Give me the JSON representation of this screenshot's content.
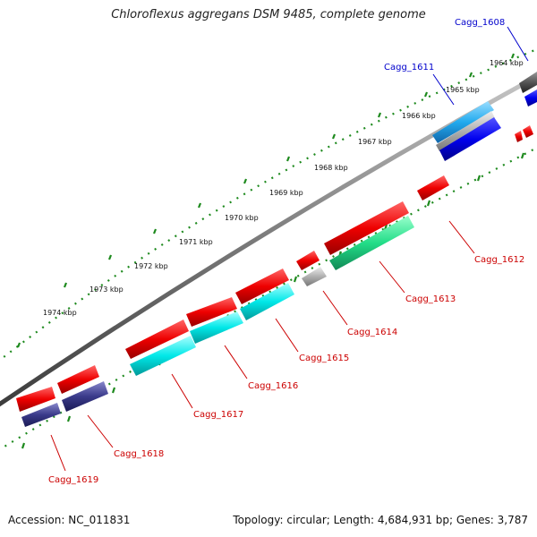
{
  "title": "Chloroflexus aggregans DSM 9485, complete genome",
  "footer": {
    "accession": "Accession: NC_011831",
    "summary": "Topology: circular; Length: 4,684,931 bp; Genes: 3,787"
  },
  "ticks": [
    "1964 kbp",
    "1965 kbp",
    "1966 kbp",
    "1967 kbp",
    "1968 kbp",
    "1969 kbp",
    "1970 kbp",
    "1971 kbp",
    "1972 kbp",
    "1973 kbp",
    "1974 kbp"
  ],
  "genes": [
    {
      "id": "g1608",
      "label": "Cagg_1608",
      "color": "#0000cc"
    },
    {
      "id": "g1611",
      "label": "Cagg_1611",
      "color": "#0000cc"
    },
    {
      "id": "g1612",
      "label": "Cagg_1612",
      "color": "#cc0000"
    },
    {
      "id": "g1613",
      "label": "Cagg_1613",
      "color": "#cc0000"
    },
    {
      "id": "g1614",
      "label": "Cagg_1614",
      "color": "#cc0000"
    },
    {
      "id": "g1615",
      "label": "Cagg_1615",
      "color": "#cc0000"
    },
    {
      "id": "g1616",
      "label": "Cagg_1616",
      "color": "#cc0000"
    },
    {
      "id": "g1617",
      "label": "Cagg_1617",
      "color": "#cc0000"
    },
    {
      "id": "g1618",
      "label": "Cagg_1618",
      "color": "#cc0000"
    },
    {
      "id": "g1619",
      "label": "Cagg_1619",
      "color": "#cc0000"
    }
  ],
  "colors": {
    "backbone": "#7a7a7a",
    "tick_ring": "#1e8a1e",
    "red": "#ee0000",
    "blue": "#0000ee",
    "cyan": "#00e8e8",
    "green": "#22dd88",
    "gray": "#b0b0b0",
    "navy": "#3a3a8a",
    "dark": "#555555",
    "sky": "#22aaee"
  }
}
